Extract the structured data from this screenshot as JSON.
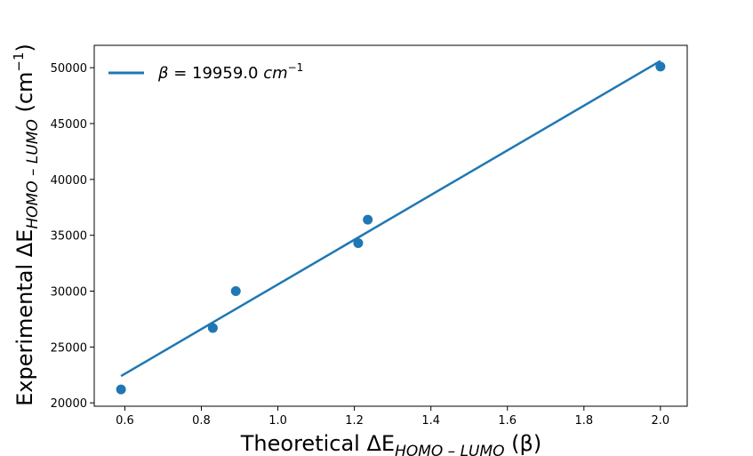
{
  "chart_data": {
    "type": "scatter",
    "xlim": [
      0.52,
      2.07
    ],
    "ylim": [
      19700,
      52000
    ],
    "x_ticks": [
      0.6,
      0.8,
      1.0,
      1.2,
      1.4,
      1.6,
      1.8,
      2.0
    ],
    "x_tick_labels": [
      "0.6",
      "0.8",
      "1.0",
      "1.2",
      "1.4",
      "1.6",
      "1.8",
      "2.0"
    ],
    "y_ticks": [
      20000,
      25000,
      30000,
      35000,
      40000,
      45000,
      50000
    ],
    "y_tick_labels": [
      "20000",
      "25000",
      "30000",
      "35000",
      "40000",
      "45000",
      "50000"
    ],
    "xlabel": {
      "text": "Theoretical ΔE",
      "sub": "HOMO – LUMO",
      "tail": " (β)"
    },
    "ylabel": {
      "text": "Experimental  ΔE",
      "sub": "HOMO – LUMO",
      "tail": " (cm",
      "sup": "−1",
      "end": ")"
    },
    "points": {
      "x": [
        0.59,
        0.83,
        0.89,
        1.21,
        1.235,
        2.0
      ],
      "y": [
        21200,
        26700,
        30000,
        34300,
        36400,
        50100
      ],
      "color": "#1f77b4"
    },
    "fit_line": {
      "x": [
        0.59,
        2.0
      ],
      "y": [
        22400,
        50600
      ],
      "color": "#1f77b4"
    },
    "legend": {
      "label_beta": "β",
      "label_value": " = 19959.0 ",
      "label_unit": "cm",
      "label_sup": "−1",
      "position": "top-left"
    },
    "grid": false
  }
}
